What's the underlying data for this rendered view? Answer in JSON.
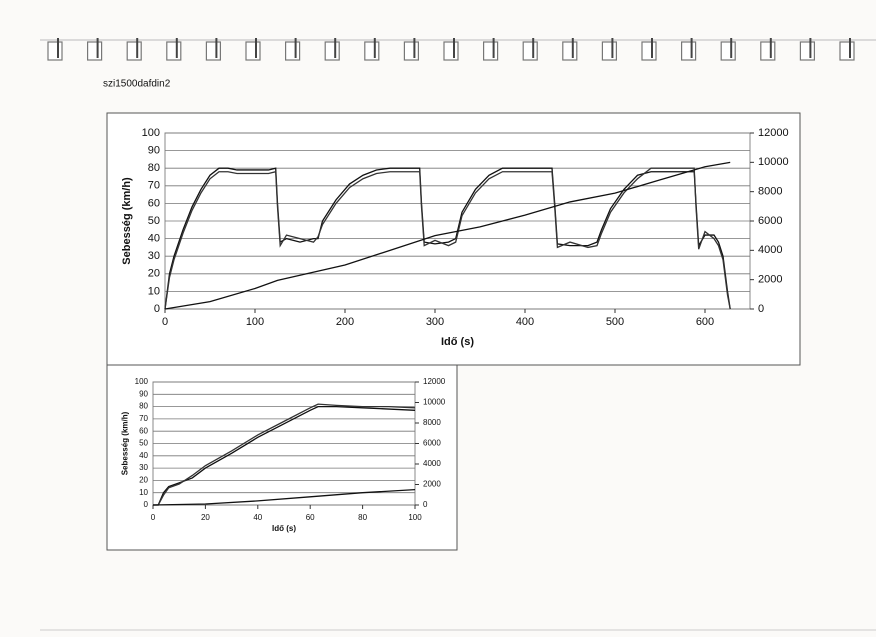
{
  "page_label": "szi1500dafdin2",
  "chart_data": [
    {
      "type": "line",
      "x_label": "Idő (s)",
      "y_label": "Sebesség (km/h)",
      "xlim": [
        0,
        650
      ],
      "xticks": [
        0,
        100,
        200,
        300,
        400,
        500,
        600
      ],
      "ylim": [
        0,
        100
      ],
      "yticks": [
        0,
        10,
        20,
        30,
        40,
        50,
        60,
        70,
        80,
        90,
        100
      ],
      "y2lim": [
        0,
        12000
      ],
      "y2ticks": [
        0,
        2000,
        4000,
        6000,
        8000,
        10000,
        12000
      ],
      "grid": true,
      "series": [
        {
          "color": "#111111",
          "x": [
            0,
            5,
            10,
            20,
            30,
            40,
            50,
            60,
            70,
            80,
            100,
            115,
            123,
            125,
            128,
            135,
            150,
            165,
            170,
            175,
            190,
            205,
            220,
            235,
            250,
            270,
            283,
            285,
            288,
            300,
            315,
            323,
            330,
            345,
            360,
            375,
            400,
            430,
            433,
            436,
            450,
            470,
            480,
            485,
            495,
            510,
            525,
            540,
            560,
            580,
            588,
            590,
            593,
            600,
            610,
            615,
            620,
            625,
            628
          ],
          "values": [
            0,
            20,
            30,
            45,
            58,
            68,
            76,
            80,
            80,
            79,
            79,
            79,
            80,
            60,
            38,
            40,
            38,
            40,
            40,
            50,
            62,
            71,
            76,
            79,
            80,
            80,
            80,
            60,
            38,
            37,
            38,
            40,
            55,
            68,
            76,
            80,
            80,
            80,
            60,
            37,
            36,
            36,
            38,
            45,
            57,
            68,
            76,
            78,
            78,
            78,
            78,
            60,
            36,
            42,
            42,
            38,
            30,
            10,
            0
          ]
        },
        {
          "color": "#333333",
          "x": [
            0,
            5,
            10,
            20,
            30,
            40,
            50,
            60,
            70,
            80,
            100,
            115,
            123,
            125,
            128,
            135,
            150,
            165,
            170,
            175,
            190,
            205,
            220,
            235,
            250,
            270,
            283,
            285,
            288,
            300,
            315,
            323,
            330,
            345,
            360,
            375,
            400,
            430,
            433,
            436,
            450,
            470,
            480,
            485,
            495,
            510,
            525,
            540,
            560,
            580,
            588,
            590,
            593,
            600,
            610,
            615,
            620,
            625,
            628
          ],
          "values": [
            0,
            18,
            28,
            43,
            56,
            66,
            74,
            78,
            78,
            77,
            77,
            77,
            78,
            58,
            36,
            42,
            40,
            38,
            41,
            48,
            60,
            69,
            74,
            77,
            78,
            78,
            78,
            58,
            36,
            39,
            36,
            38,
            53,
            66,
            74,
            78,
            78,
            78,
            58,
            35,
            38,
            35,
            36,
            43,
            55,
            66,
            74,
            80,
            80,
            80,
            80,
            58,
            34,
            44,
            40,
            36,
            28,
            8,
            0
          ]
        },
        {
          "color": "#111111",
          "axis": "y2",
          "x": [
            0,
            50,
            100,
            125,
            150,
            200,
            250,
            300,
            350,
            400,
            450,
            500,
            550,
            600,
            628
          ],
          "values": [
            0,
            500,
            1400,
            1950,
            2300,
            3000,
            4000,
            5000,
            5600,
            6400,
            7300,
            7900,
            8800,
            9700,
            10000
          ]
        }
      ]
    },
    {
      "type": "line",
      "x_label": "Idő (s)",
      "y_label": "Sebesség (km/h)",
      "xlim": [
        0,
        100
      ],
      "xticks": [
        0,
        20,
        40,
        60,
        80,
        100
      ],
      "ylim": [
        0,
        100
      ],
      "yticks": [
        0,
        10,
        20,
        30,
        40,
        50,
        60,
        70,
        80,
        90,
        100
      ],
      "y2lim": [
        0,
        12000
      ],
      "y2ticks": [
        0,
        2000,
        4000,
        6000,
        8000,
        10000,
        12000
      ],
      "grid": true,
      "series": [
        {
          "color": "#111111",
          "x": [
            0,
            2,
            4,
            6,
            10,
            15,
            20,
            30,
            40,
            50,
            60,
            63,
            70,
            80,
            90,
            100
          ],
          "values": [
            0,
            0,
            10,
            15,
            18,
            22,
            30,
            42,
            55,
            66,
            77,
            80,
            80,
            79,
            78,
            77
          ]
        },
        {
          "color": "#333333",
          "x": [
            0,
            2,
            4,
            6,
            10,
            15,
            20,
            30,
            40,
            50,
            60,
            63,
            70,
            80,
            90,
            100
          ],
          "values": [
            0,
            0,
            8,
            14,
            17,
            24,
            32,
            44,
            57,
            68,
            79,
            82,
            81,
            80,
            80,
            79
          ]
        },
        {
          "color": "#111111",
          "axis": "y2",
          "x": [
            0,
            20,
            40,
            60,
            80,
            100
          ],
          "values": [
            0,
            100,
            400,
            800,
            1200,
            1500
          ]
        }
      ]
    }
  ]
}
